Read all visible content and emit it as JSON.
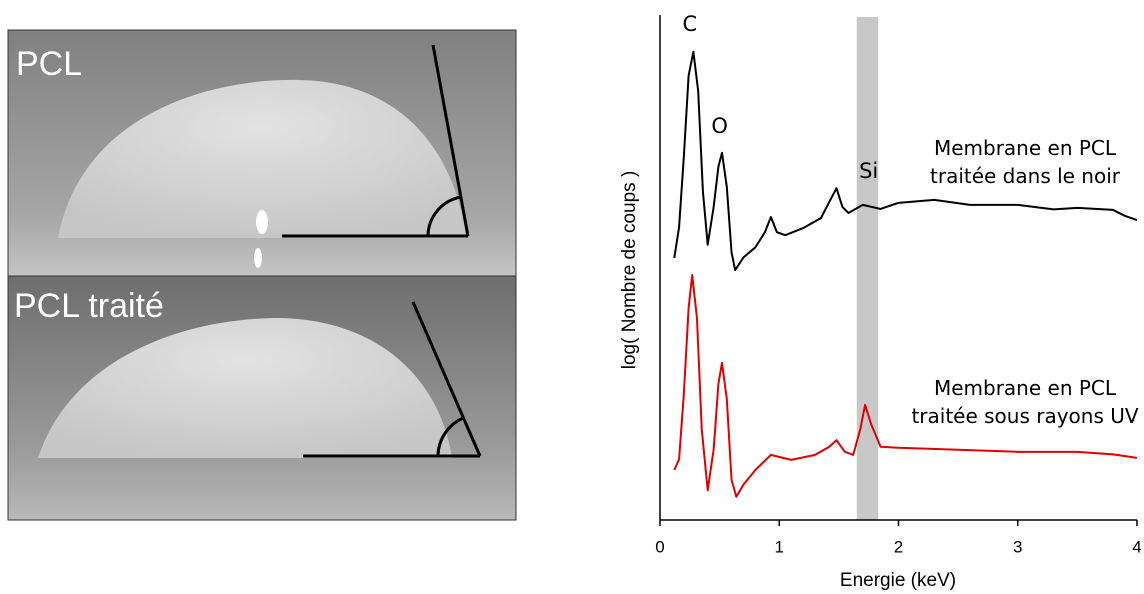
{
  "images": [
    {
      "label": "PCL"
    },
    {
      "label": "PCL traité"
    }
  ],
  "chart_data": {
    "type": "line",
    "x_label": "Energie (keV)",
    "y_label": "log( Nombre de coups )",
    "xlim": [
      0,
      4
    ],
    "xticks": [
      0,
      1,
      2,
      3,
      4
    ],
    "ylim": [
      0,
      100
    ],
    "shaded_band": {
      "x": [
        1.65,
        1.83
      ],
      "color": "#c8c8c8"
    },
    "annotations": [
      {
        "text": "C",
        "x": 0.25,
        "y": 98
      },
      {
        "text": "O",
        "x": 0.5,
        "y": 77.8
      },
      {
        "text": "Si",
        "x": 1.75,
        "y": 68.9
      }
    ],
    "series": [
      {
        "name": "Membrane en PCL traitée dans le noir",
        "color": "#000000",
        "x": [
          0.12,
          0.16,
          0.2,
          0.24,
          0.28,
          0.32,
          0.36,
          0.4,
          0.45,
          0.49,
          0.52,
          0.56,
          0.6,
          0.63,
          0.7,
          0.8,
          0.88,
          0.93,
          0.98,
          1.05,
          1.2,
          1.35,
          1.42,
          1.48,
          1.53,
          1.58,
          1.7,
          1.85,
          2.0,
          2.3,
          2.6,
          3.0,
          3.3,
          3.5,
          3.8,
          3.9,
          4.0
        ],
        "values": [
          51.9,
          58,
          72,
          88,
          92.7,
          85,
          65,
          54.5,
          62,
          70,
          72.7,
          66,
          53,
          49.5,
          52,
          54,
          57,
          60,
          57,
          56.4,
          57.8,
          59.8,
          63,
          65.7,
          62,
          60.8,
          62.4,
          61.6,
          62.8,
          63.4,
          62.4,
          62.4,
          61.5,
          61.8,
          61.4,
          60.2,
          59.4
        ]
      },
      {
        "name": "Membrane en PCL traitée sous rayons UV",
        "color": "#e00000",
        "x": [
          0.12,
          0.16,
          0.2,
          0.24,
          0.27,
          0.31,
          0.35,
          0.4,
          0.45,
          0.49,
          0.52,
          0.56,
          0.6,
          0.64,
          0.7,
          0.8,
          0.93,
          1.1,
          1.3,
          1.42,
          1.48,
          1.55,
          1.62,
          1.68,
          1.72,
          1.77,
          1.85,
          2.0,
          2.5,
          3.0,
          3.5,
          3.8,
          4.0
        ],
        "values": [
          9.9,
          12,
          25,
          42,
          48.5,
          40,
          18,
          5.9,
          14,
          27,
          31.1,
          24,
          8,
          4.6,
          7,
          9.9,
          12.9,
          11.9,
          12.9,
          14.5,
          15.8,
          13.5,
          12.9,
          18,
          22.8,
          19,
          14.5,
          14.3,
          13.9,
          13.5,
          13.5,
          13,
          12.3
        ]
      }
    ]
  }
}
